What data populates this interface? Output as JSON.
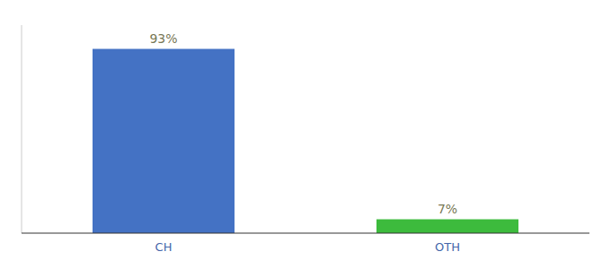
{
  "chart_data": {
    "type": "bar",
    "categories": [
      "CH",
      "OTH"
    ],
    "values": [
      93,
      7
    ],
    "value_labels": [
      "93%",
      "7%"
    ],
    "colors": [
      "#4472c4",
      "#3dbb3d"
    ],
    "ylim": [
      0,
      105
    ],
    "data_labels": true,
    "tick_labels": "x",
    "grid": false
  }
}
